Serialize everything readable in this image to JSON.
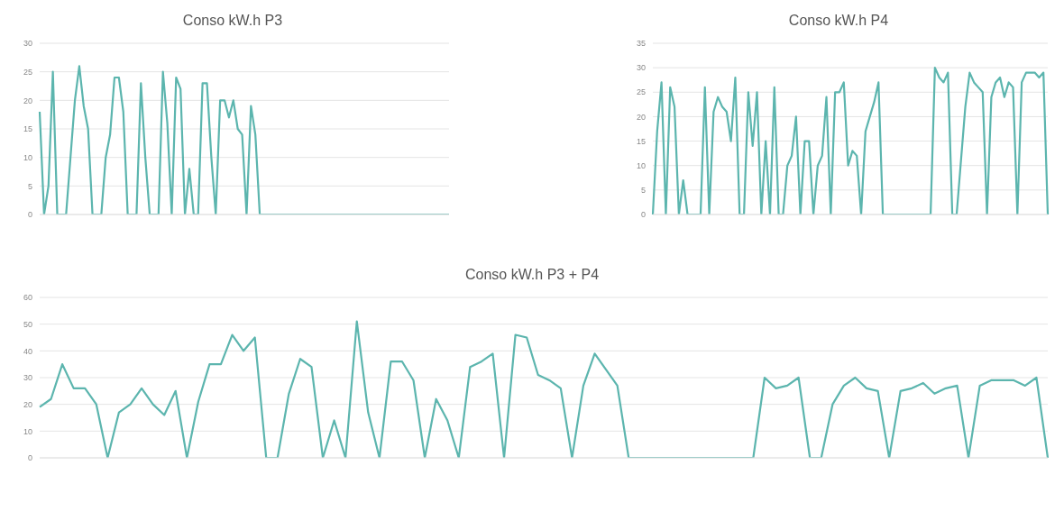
{
  "chart_data": [
    {
      "type": "line",
      "title": "Conso kW.h P3",
      "color": "#5cb5ae",
      "grid": "y",
      "ylim": [
        0,
        30
      ],
      "yticks": [
        0,
        5,
        10,
        15,
        20,
        25,
        30
      ],
      "categories": [
        null,
        null,
        null,
        null,
        null,
        null,
        null,
        null,
        null,
        null,
        null,
        null,
        null,
        null,
        null,
        null,
        null,
        null,
        null,
        null,
        null,
        null,
        null,
        null,
        null,
        null,
        null,
        null,
        null,
        null,
        null,
        null,
        null,
        null,
        null,
        null,
        null,
        null,
        null,
        null,
        null,
        null,
        null,
        null,
        null,
        null,
        null,
        null,
        null,
        null,
        null,
        null,
        null,
        null,
        null,
        null,
        null,
        null,
        null,
        null,
        null,
        null,
        null,
        null,
        null,
        null,
        null,
        null,
        null,
        null,
        null,
        null,
        null,
        null,
        null,
        null,
        null,
        null,
        null,
        null,
        null,
        null,
        null,
        null,
        null,
        null,
        null,
        null,
        null,
        null,
        null,
        null,
        null,
        null
      ],
      "values": [
        18,
        0,
        5,
        25,
        0,
        0,
        0,
        10,
        20,
        26,
        19,
        15,
        0,
        0,
        0,
        10,
        14,
        24,
        24,
        18,
        0,
        0,
        0,
        23,
        10,
        0,
        0,
        0,
        25,
        16,
        0,
        24,
        22,
        0,
        8,
        0,
        0,
        23,
        23,
        10,
        0,
        20,
        20,
        17,
        20,
        15,
        14,
        0,
        19,
        14,
        0,
        0,
        0,
        0,
        0,
        0,
        0,
        0,
        0,
        0,
        0,
        0,
        0,
        0,
        0,
        0,
        0,
        0,
        0,
        0,
        0,
        0,
        0,
        0,
        0,
        0,
        0,
        0,
        0,
        0,
        0,
        0,
        0,
        0,
        0,
        0,
        0,
        0,
        0,
        0,
        0,
        0,
        0,
        0
      ]
    },
    {
      "type": "line",
      "title": "Conso kW.h P4",
      "color": "#5cb5ae",
      "grid": "y",
      "ylim": [
        0,
        35
      ],
      "yticks": [
        0,
        5,
        10,
        15,
        20,
        25,
        30,
        35
      ],
      "categories": [
        null,
        null,
        null,
        null,
        null,
        null,
        null,
        null,
        null,
        null,
        null,
        null,
        null,
        null,
        null,
        null,
        null,
        null,
        null,
        null,
        null,
        null,
        null,
        null,
        null,
        null,
        null,
        null,
        null,
        null,
        null,
        null,
        null,
        null,
        null,
        null,
        null,
        null,
        null,
        null,
        null,
        null,
        null,
        null,
        null,
        null,
        null,
        null,
        null,
        null,
        null,
        null,
        null,
        null,
        null,
        null,
        null,
        null,
        null,
        null,
        null,
        null,
        null,
        null,
        null,
        null,
        null,
        null,
        null,
        null,
        null,
        null,
        null,
        null,
        null,
        null,
        null,
        null,
        null,
        null,
        null,
        null,
        null,
        null,
        null,
        null,
        null,
        null,
        null,
        null,
        null,
        null
      ],
      "values": [
        0,
        17,
        27,
        0,
        26,
        22,
        0,
        7,
        0,
        0,
        0,
        0,
        26,
        0,
        21,
        24,
        22,
        21,
        15,
        28,
        0,
        0,
        25,
        14,
        25,
        0,
        15,
        0,
        26,
        0,
        0,
        10,
        12,
        20,
        0,
        15,
        15,
        0,
        10,
        12,
        24,
        0,
        25,
        25,
        27,
        10,
        13,
        12,
        0,
        17,
        20,
        23,
        27,
        0,
        0,
        0,
        0,
        0,
        0,
        0,
        0,
        0,
        0,
        0,
        0,
        30,
        28,
        27,
        29,
        0,
        0,
        11,
        22,
        29,
        27,
        26,
        25,
        0,
        24,
        27,
        28,
        24,
        27,
        26,
        0,
        27,
        29,
        29,
        29,
        28,
        29,
        0
      ]
    },
    {
      "type": "line",
      "title": "Conso kW.h P3 + P4",
      "color": "#5cb5ae",
      "grid": "y",
      "ylim": [
        0,
        60
      ],
      "yticks": [
        0,
        10,
        20,
        30,
        40,
        50,
        60
      ],
      "categories": [
        null,
        null,
        null,
        null,
        null,
        null,
        null,
        null,
        null,
        null,
        null,
        null,
        null,
        null,
        null,
        null,
        null,
        null,
        null,
        null,
        null,
        null,
        null,
        null,
        null,
        null,
        null,
        null,
        null,
        null,
        null,
        null,
        null,
        null,
        null,
        null,
        null,
        null,
        null,
        null,
        null,
        null,
        null,
        null,
        null,
        null,
        null,
        null,
        null,
        null,
        null,
        null,
        null,
        null,
        null,
        null,
        null,
        null,
        null,
        null,
        null,
        null,
        null,
        null,
        null,
        null,
        null,
        null,
        null,
        null,
        null,
        null,
        null,
        null,
        null,
        null,
        null,
        null,
        null,
        null,
        null,
        null,
        null,
        null,
        null,
        null,
        null,
        null,
        null,
        null
      ],
      "values": [
        19,
        22,
        35,
        26,
        26,
        20,
        0,
        17,
        20,
        26,
        20,
        16,
        25,
        0,
        21,
        35,
        35,
        46,
        40,
        45,
        0,
        0,
        24,
        37,
        34,
        0,
        14,
        0,
        51,
        17,
        0,
        36,
        36,
        29,
        0,
        22,
        14,
        0,
        34,
        36,
        39,
        0,
        46,
        45,
        31,
        29,
        26,
        0,
        27,
        39,
        33,
        27,
        0,
        0,
        0,
        0,
        0,
        0,
        0,
        0,
        0,
        0,
        0,
        0,
        30,
        26,
        27,
        30,
        0,
        0,
        20,
        27,
        30,
        26,
        25,
        0,
        25,
        26,
        28,
        24,
        26,
        27,
        0,
        27,
        29,
        29,
        29,
        27,
        30,
        0
      ]
    }
  ]
}
